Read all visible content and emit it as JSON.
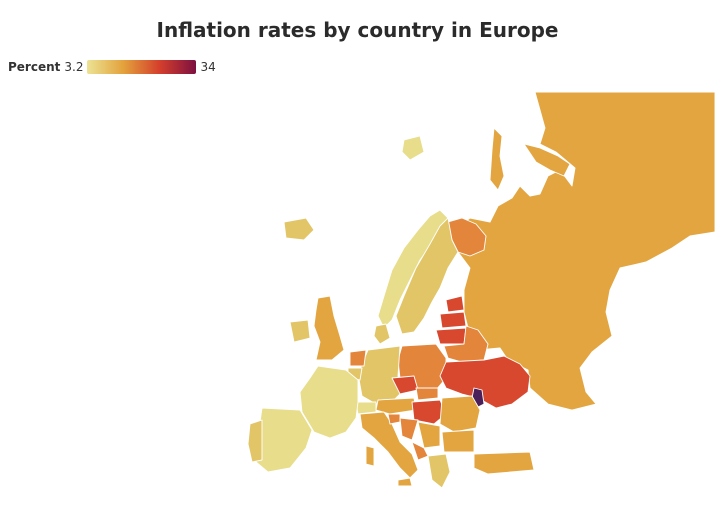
{
  "title": "Inflation rates by country in Europe",
  "legend": {
    "label": "Percent",
    "min": "3.2",
    "max": "34",
    "gradient": [
      "#ece394",
      "#e3a23c",
      "#d43f2c",
      "#7d1040"
    ]
  },
  "colors": {
    "low": "#e8dd8a",
    "lowmid": "#e2c567",
    "mid": "#e3a540",
    "midhigh": "#e3853b",
    "high": "#d8482f",
    "max": "#4a1f5a"
  }
}
